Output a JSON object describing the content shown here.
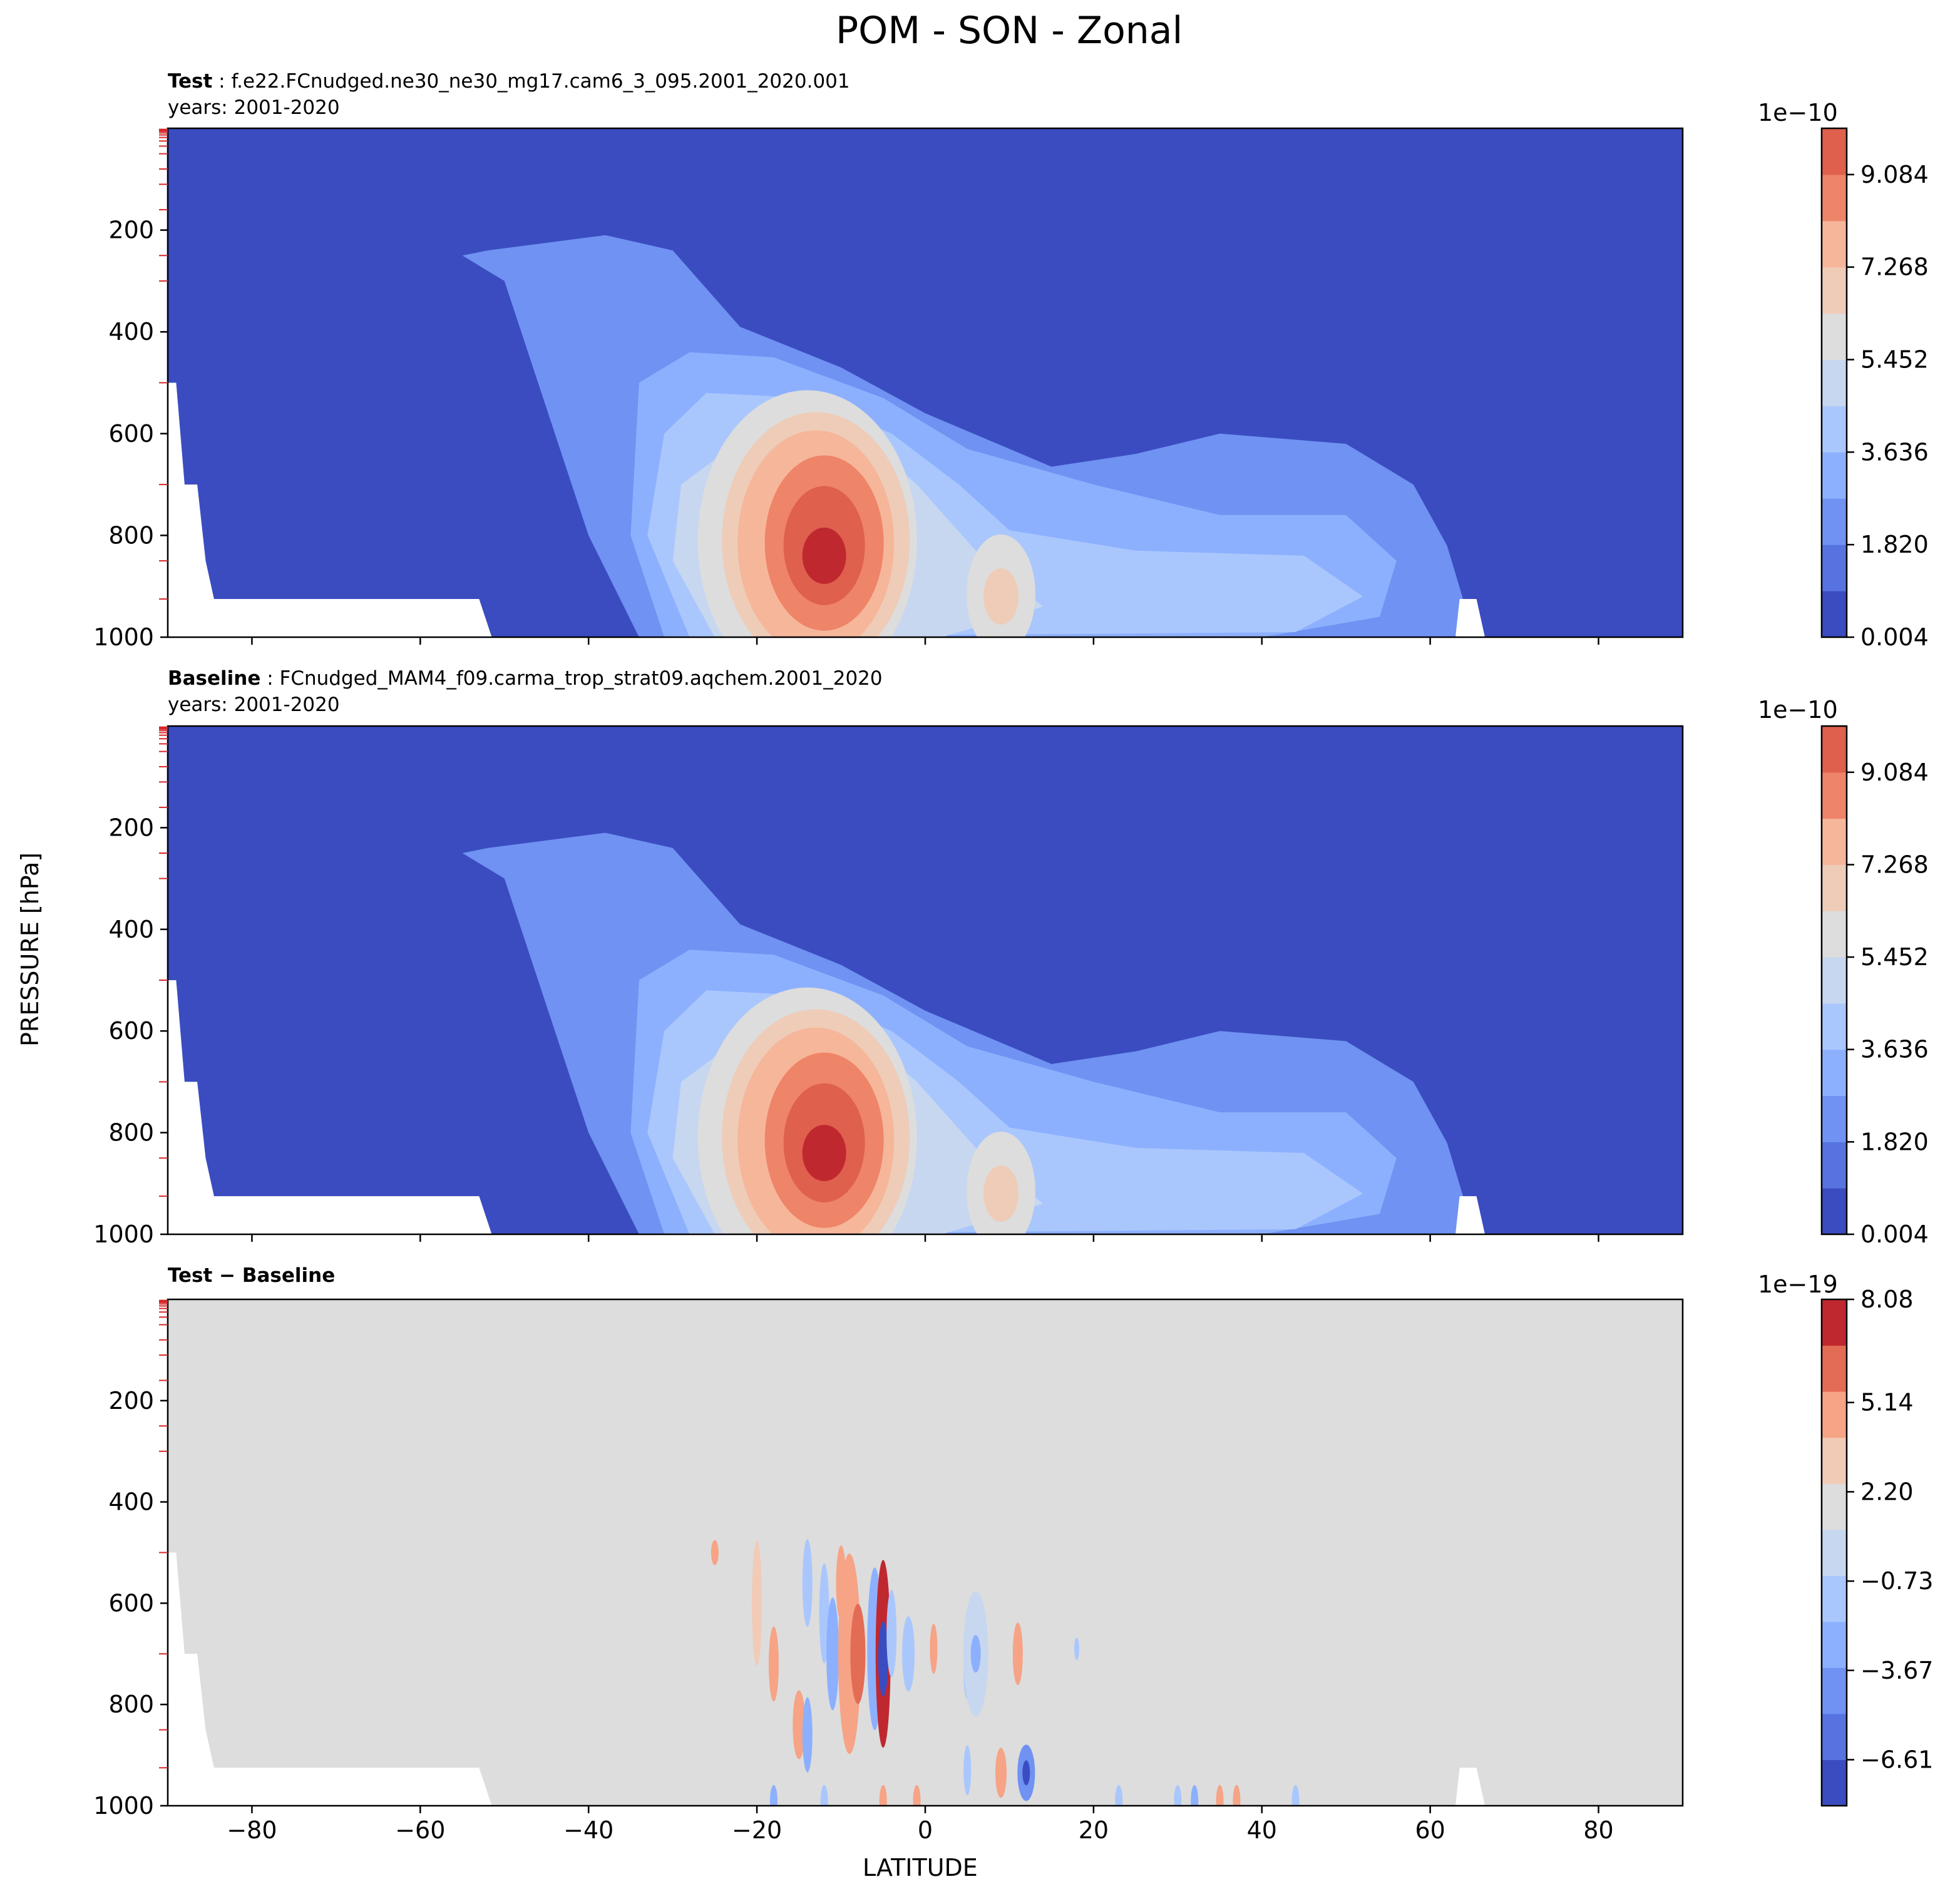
{
  "figure": {
    "suptitle": "POM - SON - Zonal",
    "ylabel": "PRESSURE [hPa]",
    "xlabel": "LATITUDE"
  },
  "panels": [
    {
      "title_bold": "Test",
      "title_text": "f.e22.FCnudged.ne30_ne30_mg17.cam6_3_095.2001_2020.001",
      "subtitle": "years: 2001-2020",
      "cbar_exponent": "1e−10"
    },
    {
      "title_bold": "Baseline",
      "title_text": "FCnudged_MAM4_f09.carma_trop_strat09.aqchem.2001_2020",
      "subtitle": "years: 2001-2020",
      "cbar_exponent": "1e−10"
    },
    {
      "title_bold": "Test − Baseline",
      "title_text": "",
      "subtitle": "",
      "cbar_exponent": "1e−19"
    }
  ],
  "colors": {
    "blue_dark": "#3b4cc0",
    "blue_mid": "#6f92f3",
    "blue_light": "#aac7fd",
    "neutral": "#dddddd",
    "red_light": "#f2cbb7",
    "red_mid": "#ee8468",
    "red_dark": "#c0282f"
  },
  "chart_data": [
    {
      "type": "heatmap",
      "name": "Test",
      "x_range": [
        -90,
        90
      ],
      "y_range": [
        1000,
        0
      ],
      "yticks": [
        200,
        400,
        600,
        800,
        1000
      ],
      "xticks": [
        -80,
        -60,
        -40,
        -20,
        0,
        20,
        40,
        60,
        80
      ],
      "show_xtick_labels": false,
      "cbar_ticks": [
        "0.004",
        "1.820",
        "3.636",
        "5.452",
        "7.268",
        "9.084"
      ],
      "cbar_levels": 11,
      "max_value": 9.9e-10,
      "max_location": {
        "lat": -12,
        "pressure": 830
      }
    },
    {
      "type": "heatmap",
      "name": "Baseline",
      "x_range": [
        -90,
        90
      ],
      "y_range": [
        1000,
        0
      ],
      "yticks": [
        200,
        400,
        600,
        800,
        1000
      ],
      "xticks": [
        -80,
        -60,
        -40,
        -20,
        0,
        20,
        40,
        60,
        80
      ],
      "show_xtick_labels": false,
      "cbar_ticks": [
        "0.004",
        "1.820",
        "3.636",
        "5.452",
        "7.268",
        "9.084"
      ],
      "cbar_levels": 11,
      "max_value": 9.9e-10,
      "max_location": {
        "lat": -12,
        "pressure": 830
      }
    },
    {
      "type": "heatmap",
      "name": "Test − Baseline",
      "x_range": [
        -90,
        90
      ],
      "y_range": [
        1000,
        0
      ],
      "yticks": [
        200,
        400,
        600,
        800,
        1000
      ],
      "xticks": [
        -80,
        -60,
        -40,
        -20,
        0,
        20,
        40,
        60,
        80
      ],
      "show_xtick_labels": true,
      "xtick_labels": [
        "−80",
        "−60",
        "−40",
        "−20",
        "0",
        "20",
        "40",
        "60",
        "80"
      ],
      "cbar_ticks": [
        "8.08",
        "5.14",
        "2.20",
        "−0.73",
        "−3.67",
        "−6.61"
      ],
      "cbar_levels": 11,
      "background_value": 0
    }
  ]
}
